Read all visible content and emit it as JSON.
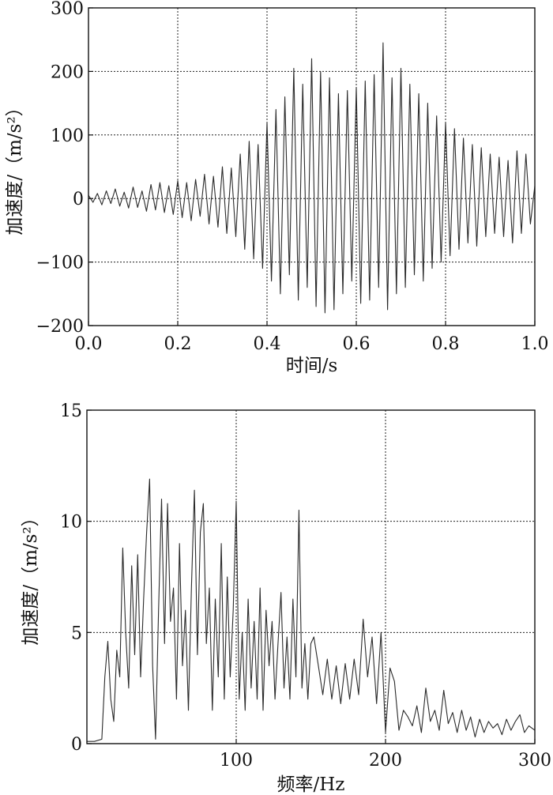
{
  "chart_data": [
    {
      "type": "line",
      "xlabel": "时间/s",
      "ylabel": "加速度/（m/s²）",
      "xlim": [
        0.0,
        1.0
      ],
      "ylim": [
        -200,
        300
      ],
      "xticks": [
        "0.0",
        "0.2",
        "0.4",
        "0.6",
        "0.8",
        "1.0"
      ],
      "xtick_values": [
        0.0,
        0.2,
        0.4,
        0.6,
        0.8,
        1.0
      ],
      "yticks": [
        "300",
        "200",
        "100",
        "0",
        "−100",
        "−200"
      ],
      "ytick_values": [
        300,
        200,
        100,
        0,
        -100,
        -200
      ],
      "grid": true,
      "series": [
        {
          "x": [
            0.0,
            0.01,
            0.02,
            0.03,
            0.04,
            0.05,
            0.06,
            0.07,
            0.08,
            0.09,
            0.1,
            0.11,
            0.12,
            0.13,
            0.14,
            0.15,
            0.16,
            0.17,
            0.18,
            0.19,
            0.2,
            0.21,
            0.22,
            0.23,
            0.24,
            0.25,
            0.26,
            0.27,
            0.28,
            0.29,
            0.3,
            0.31,
            0.32,
            0.33,
            0.34,
            0.35,
            0.36,
            0.37,
            0.38,
            0.39,
            0.4,
            0.41,
            0.42,
            0.43,
            0.44,
            0.45,
            0.46,
            0.47,
            0.48,
            0.49,
            0.5,
            0.51,
            0.52,
            0.53,
            0.54,
            0.55,
            0.56,
            0.57,
            0.58,
            0.59,
            0.6,
            0.61,
            0.62,
            0.63,
            0.64,
            0.65,
            0.66,
            0.67,
            0.68,
            0.69,
            0.7,
            0.71,
            0.72,
            0.73,
            0.74,
            0.75,
            0.76,
            0.77,
            0.78,
            0.79,
            0.8,
            0.81,
            0.82,
            0.83,
            0.84,
            0.85,
            0.86,
            0.87,
            0.88,
            0.89,
            0.9,
            0.91,
            0.92,
            0.93,
            0.94,
            0.95,
            0.96,
            0.97,
            0.98,
            0.99,
            1.0
          ],
          "y": [
            5,
            -6,
            8,
            -10,
            12,
            -8,
            15,
            -12,
            10,
            -15,
            18,
            -14,
            12,
            -20,
            22,
            -18,
            25,
            -22,
            20,
            -25,
            28,
            -30,
            25,
            -35,
            30,
            -28,
            38,
            -40,
            35,
            -45,
            50,
            -55,
            48,
            -60,
            70,
            -80,
            90,
            -95,
            85,
            -110,
            120,
            -130,
            140,
            -150,
            160,
            -120,
            205,
            -160,
            180,
            -140,
            220,
            -170,
            200,
            -180,
            190,
            -175,
            165,
            -150,
            170,
            -130,
            175,
            -165,
            185,
            -160,
            195,
            -140,
            245,
            -175,
            190,
            -150,
            205,
            -140,
            180,
            -120,
            165,
            -130,
            150,
            -110,
            130,
            -100,
            120,
            -90,
            110,
            -80,
            95,
            -70,
            85,
            -75,
            80,
            -60,
            70,
            -55,
            65,
            -60,
            60,
            -70,
            75,
            -55,
            70,
            -40,
            20
          ]
        }
      ]
    },
    {
      "type": "line",
      "xlabel": "频率/Hz",
      "ylabel": "加速度/（m/s²）",
      "xlim": [
        0,
        300
      ],
      "ylim": [
        0,
        15
      ],
      "xticks": [
        "100",
        "200",
        "300"
      ],
      "xtick_values": [
        100,
        200,
        300
      ],
      "yticks": [
        "15",
        "10",
        "5",
        "0"
      ],
      "ytick_values": [
        15,
        10,
        5,
        0
      ],
      "grid": true,
      "series": [
        {
          "x": [
            0,
            5,
            10,
            12,
            14,
            16,
            18,
            20,
            22,
            24,
            26,
            28,
            30,
            32,
            34,
            36,
            38,
            40,
            42,
            44,
            46,
            48,
            50,
            52,
            54,
            56,
            58,
            60,
            62,
            64,
            66,
            68,
            70,
            72,
            74,
            76,
            78,
            80,
            82,
            84,
            86,
            88,
            90,
            92,
            94,
            96,
            98,
            100,
            102,
            104,
            106,
            108,
            110,
            112,
            114,
            116,
            118,
            120,
            122,
            124,
            126,
            128,
            130,
            132,
            134,
            136,
            138,
            140,
            142,
            144,
            146,
            148,
            150,
            152,
            155,
            158,
            161,
            164,
            167,
            170,
            173,
            176,
            179,
            182,
            185,
            188,
            191,
            194,
            197,
            200,
            203,
            206,
            209,
            212,
            215,
            218,
            221,
            224,
            227,
            230,
            233,
            236,
            239,
            242,
            245,
            248,
            251,
            254,
            257,
            260,
            263,
            266,
            269,
            272,
            275,
            278,
            281,
            284,
            287,
            290,
            293,
            296,
            300
          ],
          "y": [
            0.1,
            0.1,
            0.2,
            3.0,
            4.6,
            2.0,
            1.0,
            4.2,
            3.0,
            8.8,
            5.0,
            2.5,
            8.0,
            4.0,
            8.5,
            3.0,
            6.5,
            9.5,
            11.9,
            3.5,
            0.2,
            6.0,
            11.0,
            4.5,
            10.8,
            5.5,
            7.0,
            2.0,
            9.0,
            3.5,
            6.0,
            1.5,
            7.0,
            11.4,
            4.0,
            9.5,
            10.8,
            4.5,
            7.0,
            1.5,
            6.5,
            3.0,
            9.0,
            2.0,
            7.5,
            3.0,
            6.0,
            10.9,
            2.0,
            5.0,
            1.5,
            6.5,
            2.5,
            5.5,
            2.0,
            7.0,
            1.5,
            6.0,
            3.5,
            5.5,
            2.0,
            4.5,
            6.8,
            2.5,
            4.8,
            2.0,
            6.5,
            3.0,
            10.5,
            2.5,
            4.5,
            2.0,
            4.5,
            4.8,
            3.5,
            2.2,
            3.8,
            2.0,
            3.5,
            1.8,
            3.6,
            2.0,
            3.8,
            2.2,
            5.6,
            3.0,
            4.8,
            1.8,
            5.0,
            0.5,
            3.4,
            2.8,
            0.6,
            1.5,
            1.2,
            0.8,
            1.7,
            0.5,
            2.5,
            1.0,
            1.5,
            0.6,
            2.4,
            0.9,
            1.4,
            0.5,
            1.5,
            0.6,
            1.2,
            0.3,
            1.1,
            0.5,
            1.0,
            0.7,
            0.9,
            0.4,
            1.1,
            0.6,
            1.0,
            1.3,
            0.5,
            0.8,
            0.6
          ]
        }
      ]
    }
  ]
}
